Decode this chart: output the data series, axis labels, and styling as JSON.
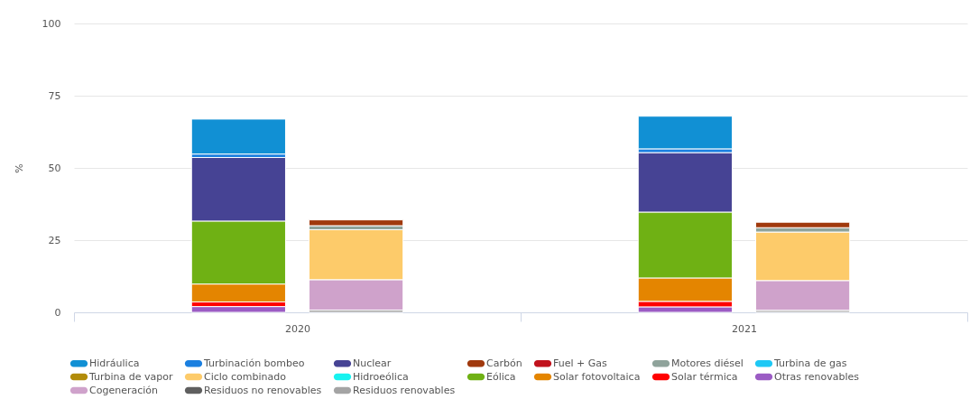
{
  "chart_data": {
    "type": "bar",
    "stacked": true,
    "ylabel": "%",
    "categories": [
      null,
      null,
      null,
      null
    ],
    "annotations": [
      "2020",
      "2021"
    ],
    "ylim": [
      0,
      100
    ],
    "yticks": [
      0,
      25,
      50,
      75,
      100
    ],
    "grid": "y",
    "legend": "bottom",
    "series": [
      {
        "name": "Residuos renovables",
        "color": "#a4a4a4",
        "values": [
          null,
          0.8,
          null,
          0.7
        ]
      },
      {
        "name": "Residuos no renovables",
        "color": "#5f5f5f",
        "values": [
          null,
          null,
          null,
          null
        ]
      },
      {
        "name": "Cogeneración",
        "color": "#cfa2cb",
        "values": [
          null,
          10.5,
          null,
          10.3
        ]
      },
      {
        "name": "Otras renovables",
        "color": "#9b5cc4",
        "values": [
          2.0,
          null,
          1.9,
          null
        ]
      },
      {
        "name": "Solar térmica",
        "color": "#ff0000",
        "values": [
          1.6,
          null,
          1.9,
          null
        ]
      },
      {
        "name": "Solar fotovoltaica",
        "color": "#e48500",
        "values": [
          6.2,
          null,
          8.1,
          null
        ]
      },
      {
        "name": "Eólica",
        "color": "#6fb114",
        "values": [
          21.8,
          null,
          22.8,
          null
        ]
      },
      {
        "name": "Hidroeólica",
        "color": "#17f3f0",
        "values": [
          null,
          null,
          null,
          null
        ]
      },
      {
        "name": "Ciclo combinado",
        "color": "#fdcb6a",
        "values": [
          null,
          17.3,
          null,
          16.8
        ]
      },
      {
        "name": "Turbina de vapor",
        "color": "#b28c0a",
        "values": [
          null,
          null,
          null,
          null
        ]
      },
      {
        "name": "Turbina de gas",
        "color": "#1ec8f5",
        "values": [
          null,
          null,
          null,
          null
        ]
      },
      {
        "name": "Motores diésel",
        "color": "#8fa39b",
        "values": [
          null,
          1.4,
          null,
          1.5
        ]
      },
      {
        "name": "Fuel + Gas",
        "color": "#c1121c",
        "values": [
          null,
          null,
          null,
          null
        ]
      },
      {
        "name": "Carbón",
        "color": "#a0390d",
        "values": [
          null,
          2.0,
          null,
          1.9
        ]
      },
      {
        "name": "Nuclear",
        "color": "#464394",
        "values": [
          22.0,
          null,
          20.6,
          null
        ]
      },
      {
        "name": "Turbinación bombeo",
        "color": "#1a7fe0",
        "values": [
          1.2,
          null,
          1.3,
          null
        ]
      },
      {
        "name": "Hidráulica",
        "color": "#1190d4",
        "values": [
          12.1,
          null,
          11.3,
          null
        ]
      }
    ]
  }
}
